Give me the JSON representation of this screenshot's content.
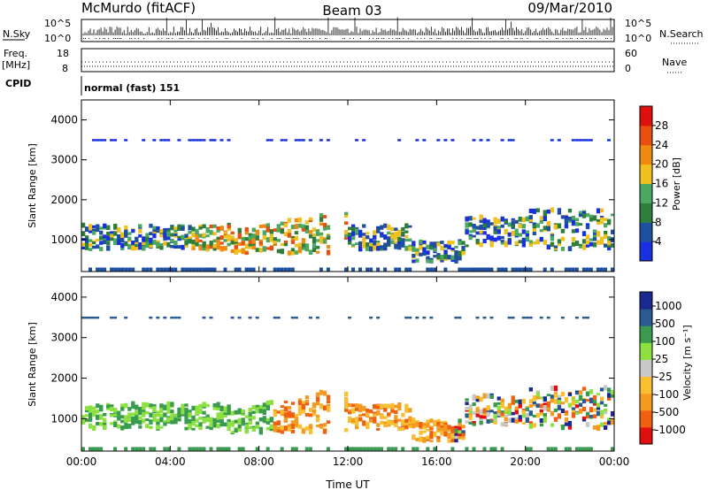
{
  "header": {
    "station": "McMurdo (fitACF)",
    "beam": "Beam 03",
    "date": "09/Mar/2010"
  },
  "top_panels": {
    "nsky_label": "N.Sky",
    "nsky_ticks": [
      "10^5",
      "10^0"
    ],
    "nsearch_label": "N.Search",
    "nsearch_ticks": [
      "10^5",
      "10^0"
    ],
    "freq_label_1": "Freq.",
    "freq_label_2": "[MHz]",
    "freq_ticks": [
      "18",
      "8"
    ],
    "nave_label": "Nave",
    "nave_ticks": [
      "60",
      "0"
    ],
    "cpid_label": "CPID",
    "cpid_value": "normal (fast) 151"
  },
  "colors": {
    "power_scale": [
      "#1830e0",
      "#1f4fa0",
      "#2e7d3a",
      "#4aa860",
      "#f0c020",
      "#f08a10",
      "#e85010",
      "#e01010"
    ],
    "velocity_scale": [
      "#e01010",
      "#f06010",
      "#f59a20",
      "#f8c030",
      "#c8c8c8",
      "#8ce040",
      "#3a9a50",
      "#2a5a90",
      "#1a2a90"
    ]
  },
  "chart_data": [
    {
      "type": "heatmap",
      "title": "Power",
      "ylabel": "Slant Range [km]",
      "xlabel": "",
      "yticks": [
        "1000",
        "2000",
        "3000",
        "4000"
      ],
      "ylim": [
        200,
        4500
      ],
      "xticks": [
        "00:00",
        "04:00",
        "08:00",
        "12:00",
        "16:00",
        "20:00",
        "00:00"
      ],
      "colorbar_label": "Power [dB]",
      "colorbar_ticks": [
        "4",
        "8",
        "12",
        "16",
        "20",
        "24",
        "28"
      ],
      "colorbar_range": [
        0,
        32
      ]
    },
    {
      "type": "heatmap",
      "title": "Velocity",
      "ylabel": "Slant Range [km]",
      "xlabel": "Time UT",
      "yticks": [
        "1000",
        "2000",
        "3000",
        "4000"
      ],
      "ylim": [
        200,
        4500
      ],
      "xticks": [
        "00:00",
        "04:00",
        "08:00",
        "12:00",
        "16:00",
        "20:00",
        "00:00"
      ],
      "colorbar_label": "Velocity [m s⁻¹]",
      "colorbar_ticks": [
        "1000",
        "500",
        "100",
        "25",
        "-25",
        "-100",
        "-500",
        "-1000"
      ]
    }
  ]
}
